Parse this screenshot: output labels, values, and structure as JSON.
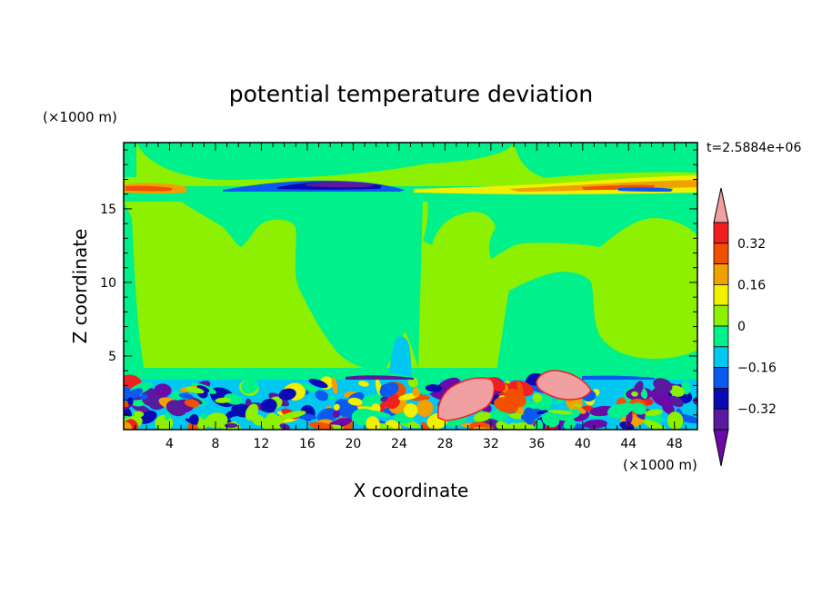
{
  "chart_data": {
    "type": "heatmap",
    "subtype": "filled-contour",
    "title": "potential temperature deviation",
    "xlabel": "X coordinate",
    "ylabel": "Z coordinate",
    "x_unit": "(×1000 m)",
    "y_unit": "(×1000 m)",
    "time_label": "t=2.5884e+06",
    "xlim": [
      0,
      50
    ],
    "ylim": [
      0,
      19.5
    ],
    "x_ticks": [
      4,
      8,
      12,
      16,
      20,
      24,
      28,
      32,
      36,
      40,
      44,
      48
    ],
    "y_ticks": [
      5,
      10,
      15
    ],
    "grid": false,
    "colorbar": {
      "placement": "right",
      "ticks": [
        {
          "value": 0.32,
          "label": "0.32"
        },
        {
          "value": 0.16,
          "label": "0.16"
        },
        {
          "value": 0,
          "label": "0"
        },
        {
          "value": -0.16,
          "label": "−0.16"
        },
        {
          "value": -0.32,
          "label": "−0.32"
        }
      ],
      "levels": [
        {
          "from": -0.48,
          "to": -0.4,
          "color": "#6a0aa8"
        },
        {
          "from": -0.4,
          "to": -0.32,
          "color": "#5a1aa0"
        },
        {
          "from": -0.32,
          "to": -0.24,
          "color": "#0a0ab4"
        },
        {
          "from": -0.24,
          "to": -0.16,
          "color": "#0a5af0"
        },
        {
          "from": -0.16,
          "to": -0.08,
          "color": "#00c8f0"
        },
        {
          "from": -0.08,
          "to": 0.0,
          "color": "#00f08c"
        },
        {
          "from": 0.0,
          "to": 0.08,
          "color": "#8cf000"
        },
        {
          "from": 0.08,
          "to": 0.16,
          "color": "#f0f000"
        },
        {
          "from": 0.16,
          "to": 0.24,
          "color": "#f0a000"
        },
        {
          "from": 0.24,
          "to": 0.32,
          "color": "#f05000"
        },
        {
          "from": 0.32,
          "to": 0.4,
          "color": "#f02020"
        },
        {
          "from": 0.4,
          "to": 0.48,
          "color": "#f0a0a0"
        }
      ]
    },
    "field_regions": [
      {
        "name": "upper-layer-positive",
        "x": [
          0,
          50
        ],
        "z": [
          16.5,
          17.2
        ],
        "value": 0.3
      },
      {
        "name": "upper-layer-negative",
        "x": [
          9,
          24
        ],
        "z": [
          16.5,
          17.2
        ],
        "value": -0.3
      },
      {
        "name": "free-troposphere-near-zero",
        "x": [
          0,
          50
        ],
        "z": [
          3.5,
          16.5
        ],
        "value": 0.04
      },
      {
        "name": "boundary-layer-turbulent",
        "x": [
          0,
          50
        ],
        "z": [
          0,
          3.5
        ],
        "value": "mixed"
      },
      {
        "name": "warm-anomaly-1",
        "x": [
          27.5,
          32.5
        ],
        "z": [
          0.7,
          3.5
        ],
        "value": 0.45
      },
      {
        "name": "warm-anomaly-2",
        "x": [
          35.5,
          39.5
        ],
        "z": [
          2.4,
          4.0
        ],
        "value": 0.45
      }
    ]
  }
}
